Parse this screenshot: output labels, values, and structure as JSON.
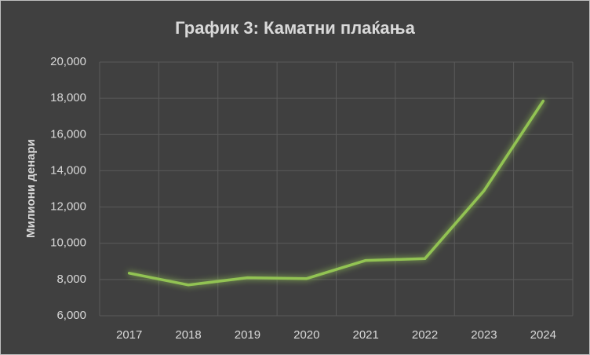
{
  "chart_data": {
    "type": "line",
    "title": "График 3: Каматни плаќања",
    "y_label": "Милиони денари",
    "categories": [
      "2017",
      "2018",
      "2019",
      "2020",
      "2021",
      "2022",
      "2023",
      "2024"
    ],
    "values": [
      8350,
      7700,
      8100,
      8050,
      9050,
      9150,
      12900,
      17850
    ],
    "color": "#92c353",
    "ylim": [
      6000,
      20000
    ],
    "yticks": [
      {
        "value": 6000,
        "label": "6,000"
      },
      {
        "value": 8000,
        "label": "8,000"
      },
      {
        "value": 10000,
        "label": "10,000"
      },
      {
        "value": 12000,
        "label": "12,000"
      },
      {
        "value": 14000,
        "label": "14,000"
      },
      {
        "value": 16000,
        "label": "16,000"
      },
      {
        "value": 18000,
        "label": "18,000"
      },
      {
        "value": 20000,
        "label": "20,000"
      }
    ],
    "grid": true
  }
}
